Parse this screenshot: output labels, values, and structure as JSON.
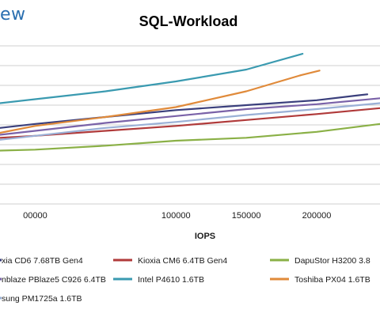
{
  "logo_text": "ew",
  "chart_data": {
    "type": "line",
    "title": "SQL-Workload",
    "xlabel": "IOPS",
    "ylabel": "",
    "xlim": [
      -25000,
      245000
    ],
    "ylim": [
      0,
      8
    ],
    "grid": true,
    "x_ticks": [
      {
        "value": 0,
        "label": "00000"
      },
      {
        "value": 100000,
        "label": "100000"
      },
      {
        "value": 150000,
        "label": "150000"
      },
      {
        "value": 200000,
        "label": "200000"
      }
    ],
    "series": [
      {
        "name": "xia CD6 7.68TB Gen4",
        "color": "#3a3f7c",
        "x": [
          -25000,
          0,
          50000,
          100000,
          150000,
          200000,
          230000,
          236000
        ],
        "y": [
          3.85,
          4.05,
          4.4,
          4.75,
          5.0,
          5.25,
          5.5,
          5.55
        ]
      },
      {
        "name": "Kioxia CM6 6.4TB Gen4",
        "color": "#b03a3a",
        "x": [
          -25000,
          0,
          50000,
          100000,
          150000,
          200000,
          245000
        ],
        "y": [
          3.35,
          3.45,
          3.7,
          3.95,
          4.25,
          4.55,
          4.85
        ]
      },
      {
        "name": "DapuStor H3200 3.8",
        "color": "#8ab046",
        "x": [
          -25000,
          0,
          50000,
          100000,
          150000,
          200000,
          245000
        ],
        "y": [
          2.7,
          2.75,
          2.95,
          3.2,
          3.35,
          3.65,
          4.05
        ]
      },
      {
        "name": "nblaze PBlaze5 C926 6.4TB",
        "color": "#7a62a8",
        "x": [
          -25000,
          0,
          50000,
          100000,
          150000,
          200000,
          245000
        ],
        "y": [
          3.5,
          3.7,
          4.1,
          4.45,
          4.8,
          5.05,
          5.35
        ]
      },
      {
        "name": "Intel P4610 1.6TB",
        "color": "#3a9ab0",
        "x": [
          -25000,
          0,
          50000,
          100000,
          150000,
          190000
        ],
        "y": [
          5.1,
          5.3,
          5.7,
          6.2,
          6.8,
          7.6
        ]
      },
      {
        "name": "Toshiba PX04 1.6TB",
        "color": "#e08a3a",
        "x": [
          -25000,
          0,
          50000,
          100000,
          150000,
          188000,
          202000
        ],
        "y": [
          3.6,
          3.95,
          4.4,
          4.9,
          5.7,
          6.5,
          6.75
        ]
      },
      {
        "name": "sung PM1725a 1.6TB",
        "color": "#9ab0d6",
        "x": [
          -25000,
          0,
          50000,
          100000,
          150000,
          200000,
          245000
        ],
        "y": [
          3.25,
          3.45,
          3.85,
          4.15,
          4.5,
          4.8,
          5.1
        ]
      }
    ]
  }
}
